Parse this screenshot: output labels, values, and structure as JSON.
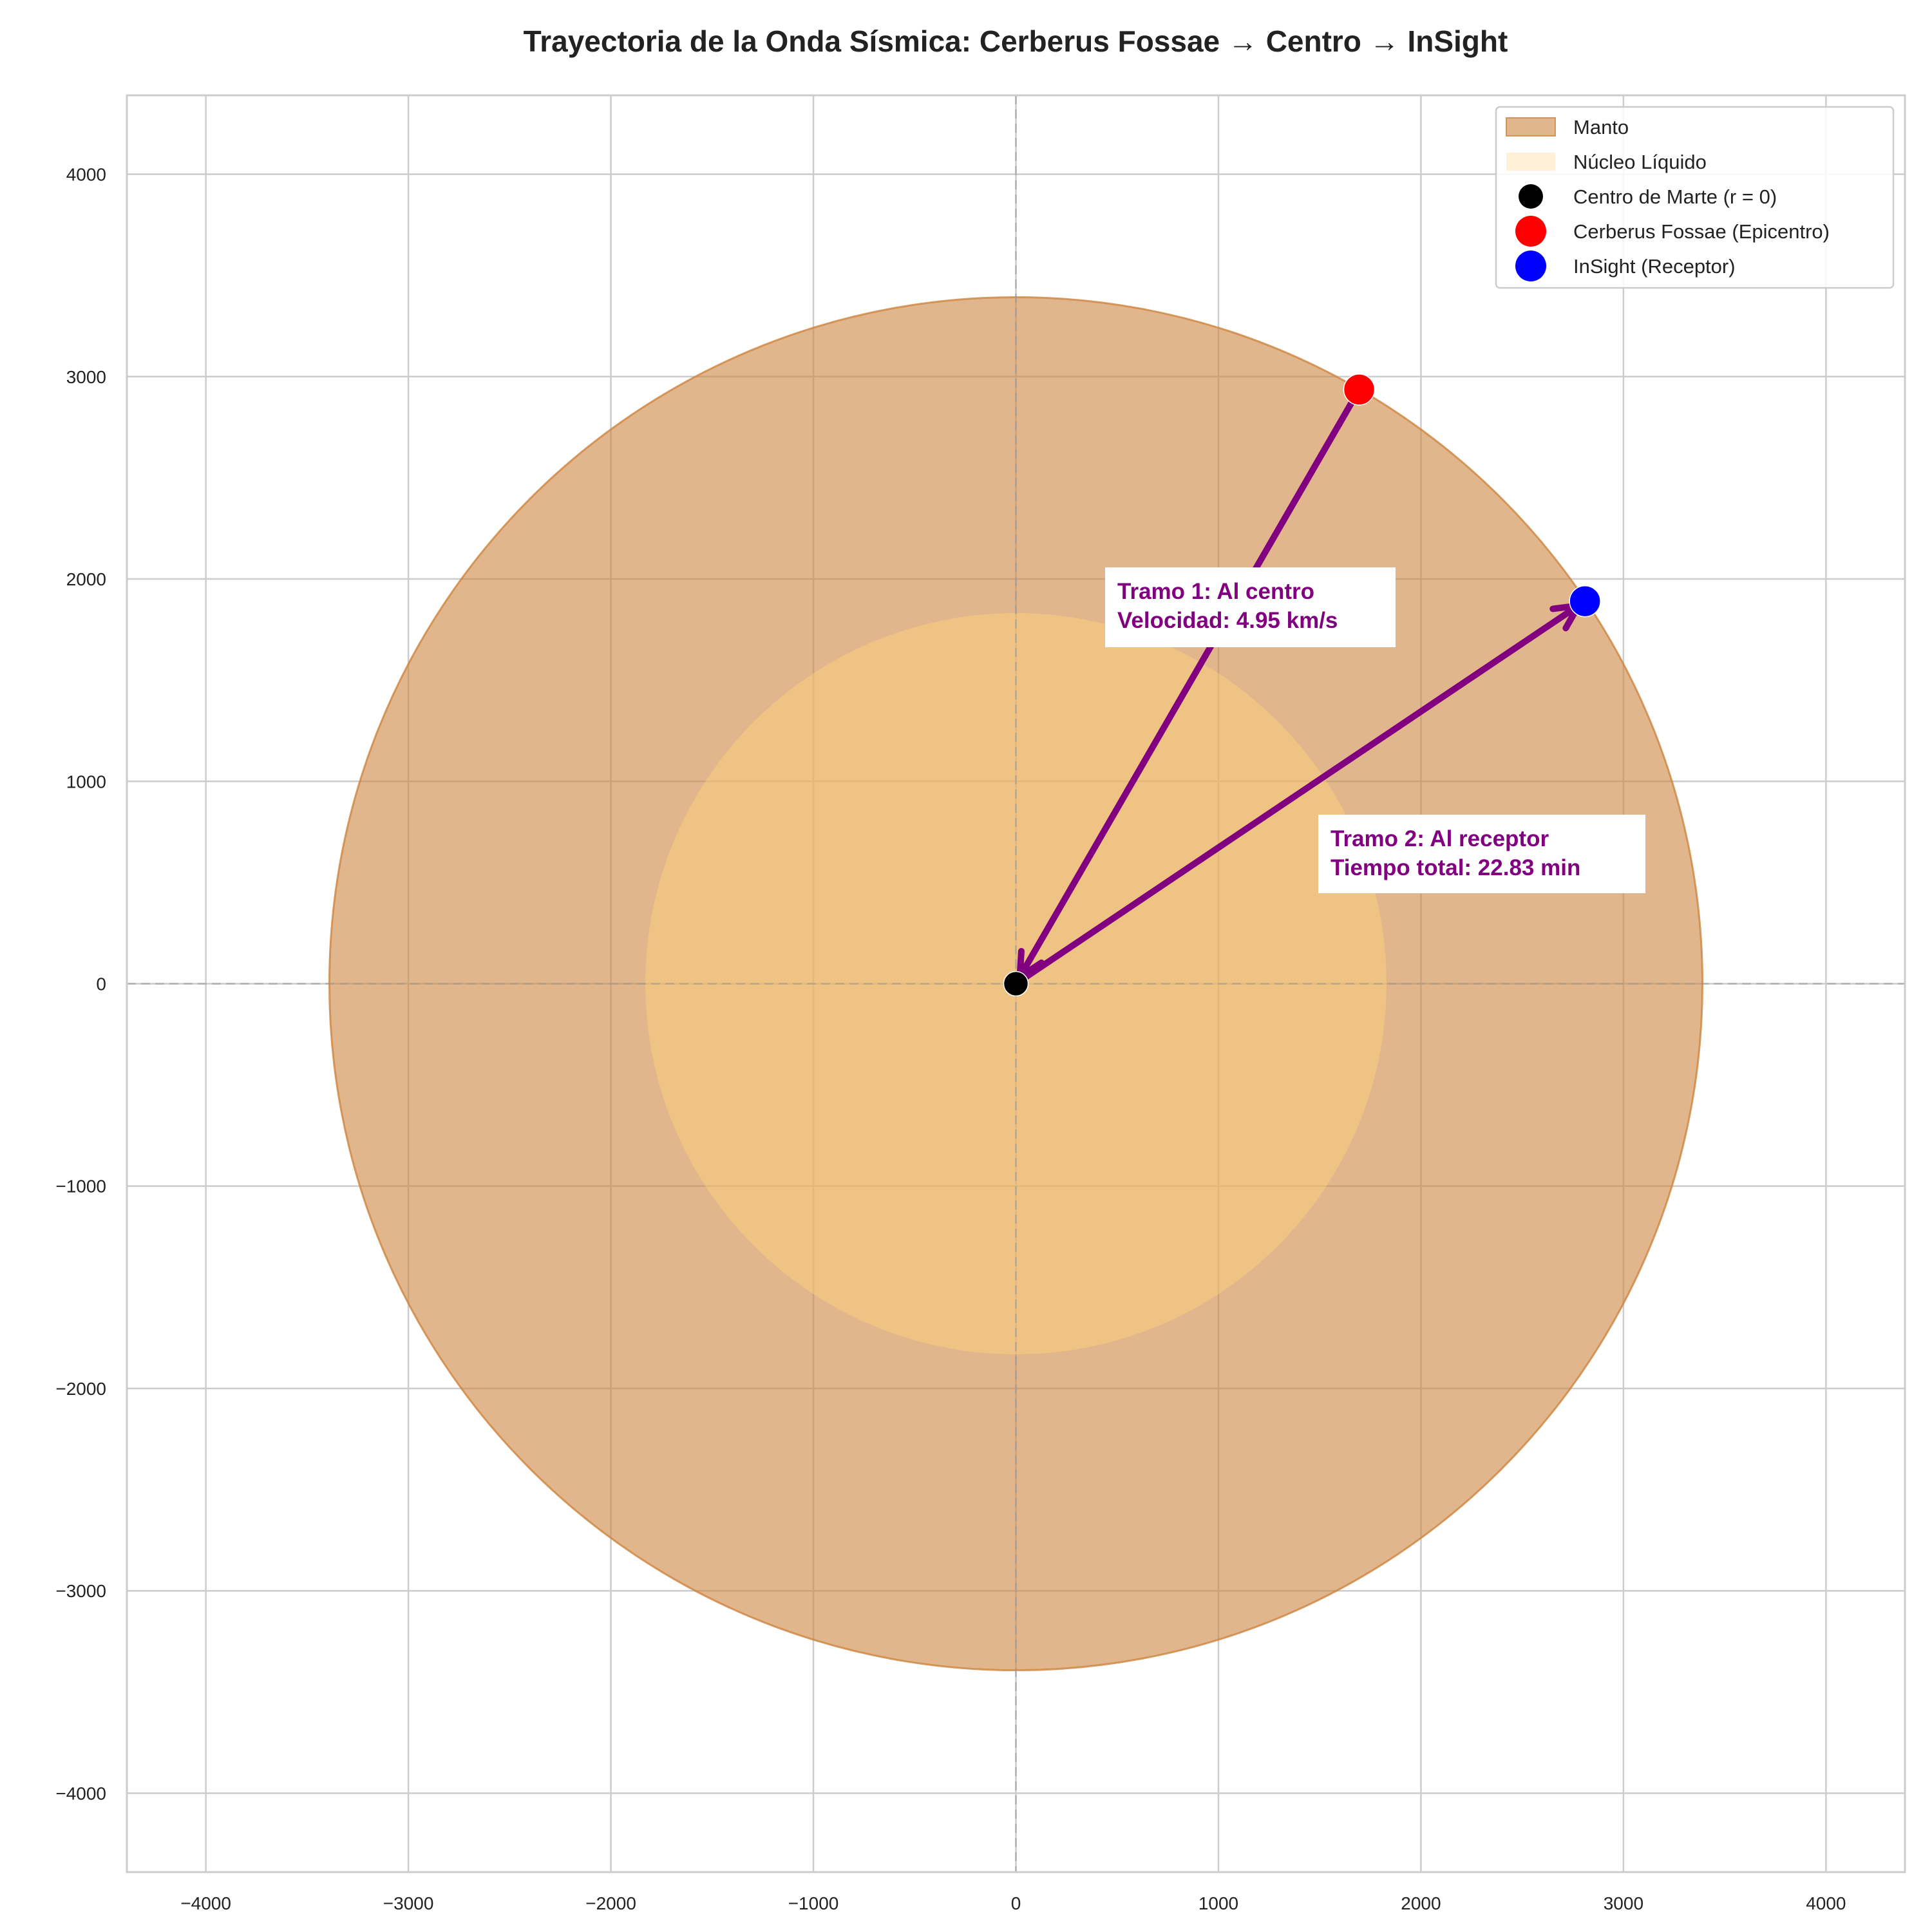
{
  "chart_data": {
    "type": "scatter",
    "title": "Trayectoria de la Onda Sísmica: Cerberus Fossae → Centro → InSight",
    "xlim": [
      -4390,
      4390
    ],
    "ylim": [
      -4390,
      4390
    ],
    "xticks": [
      {
        "value": -4000,
        "label": "−4000"
      },
      {
        "value": -3000,
        "label": "−3000"
      },
      {
        "value": -2000,
        "label": "−2000"
      },
      {
        "value": -1000,
        "label": "−1000"
      },
      0,
      1000,
      2000,
      3000,
      4000
    ],
    "yticks": [
      {
        "value": -4000,
        "label": "−4000"
      },
      {
        "value": -3000,
        "label": "−3000"
      },
      {
        "value": -2000,
        "label": "−2000"
      },
      {
        "value": -1000,
        "label": "−1000"
      },
      0,
      1000,
      2000,
      3000,
      4000
    ],
    "grid": true,
    "legend": "upper right",
    "regions": [
      {
        "name": "Manto",
        "color": "#cd853f",
        "radius": 3390
      },
      {
        "name": "Núcleo Líquido",
        "color": "#ffd27a",
        "radius": 1830
      }
    ],
    "series": [
      {
        "name": "Centro de Marte (r = 0)",
        "color": "#000000",
        "x": [
          0
        ],
        "y": [
          0
        ]
      },
      {
        "name": "Cerberus Fossae (Epicentro)",
        "color": "#ff0000",
        "x": [
          1695
        ],
        "y": [
          2936
        ]
      },
      {
        "name": "InSight (Receptor)",
        "color": "#0000ff",
        "x": [
          2810
        ],
        "y": [
          1890
        ]
      }
    ],
    "arrow_color": "#800080",
    "annotations": [
      {
        "lines": [
          "Tramo 1: Al centro",
          "Velocidad: 4.95 km/s"
        ]
      },
      {
        "lines": [
          "Tramo 2: Al receptor",
          "Tiempo total: 22.83 min"
        ]
      }
    ]
  }
}
